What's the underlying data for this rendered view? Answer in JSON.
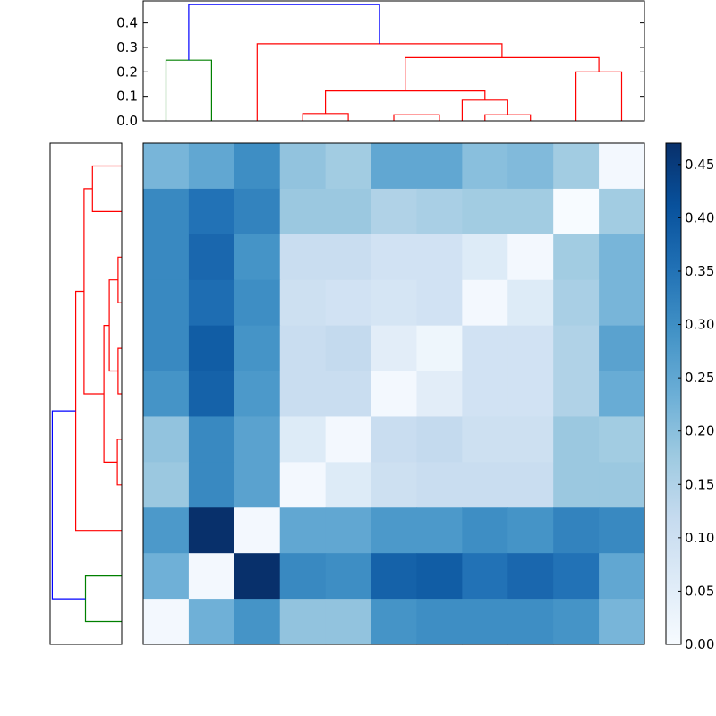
{
  "chart_data": {
    "type": "heatmap",
    "title": "",
    "matrix": [
      [
        0.22,
        0.25,
        0.3,
        0.19,
        0.17,
        0.25,
        0.25,
        0.2,
        0.21,
        0.17,
        0.01
      ],
      [
        0.31,
        0.35,
        0.32,
        0.18,
        0.18,
        0.15,
        0.16,
        0.17,
        0.17,
        0.0,
        0.17
      ],
      [
        0.31,
        0.37,
        0.29,
        0.11,
        0.11,
        0.09,
        0.09,
        0.06,
        0.01,
        0.17,
        0.22
      ],
      [
        0.31,
        0.36,
        0.3,
        0.1,
        0.09,
        0.08,
        0.09,
        0.01,
        0.06,
        0.16,
        0.22
      ],
      [
        0.31,
        0.39,
        0.29,
        0.11,
        0.12,
        0.05,
        0.02,
        0.09,
        0.09,
        0.15,
        0.26
      ],
      [
        0.29,
        0.38,
        0.28,
        0.11,
        0.11,
        0.01,
        0.05,
        0.09,
        0.09,
        0.15,
        0.24
      ],
      [
        0.19,
        0.31,
        0.26,
        0.06,
        0.01,
        0.11,
        0.12,
        0.1,
        0.1,
        0.18,
        0.17
      ],
      [
        0.18,
        0.31,
        0.26,
        0.01,
        0.06,
        0.1,
        0.11,
        0.11,
        0.11,
        0.18,
        0.18
      ],
      [
        0.28,
        0.47,
        0.01,
        0.25,
        0.25,
        0.28,
        0.28,
        0.3,
        0.29,
        0.32,
        0.31
      ],
      [
        0.23,
        0.01,
        0.47,
        0.31,
        0.3,
        0.38,
        0.39,
        0.35,
        0.37,
        0.35,
        0.25
      ],
      [
        0.01,
        0.23,
        0.29,
        0.19,
        0.19,
        0.29,
        0.3,
        0.3,
        0.3,
        0.29,
        0.22
      ]
    ],
    "colorbar": {
      "colormap": "Blues",
      "range": [
        0,
        0.47
      ],
      "ticks": [
        0.0,
        0.05,
        0.1,
        0.15,
        0.2,
        0.25,
        0.3,
        0.35,
        0.4,
        0.45
      ],
      "tick_labels": [
        "0.00",
        "0.05",
        "0.10",
        "0.15",
        "0.20",
        "0.25",
        "0.30",
        "0.35",
        "0.40",
        "0.45"
      ]
    },
    "top_dendrogram": {
      "ylim": [
        0,
        0.49
      ],
      "ticks": [
        0.0,
        0.1,
        0.2,
        0.3,
        0.4
      ],
      "tick_labels": [
        "0.0",
        "0.1",
        "0.2",
        "0.3",
        "0.4"
      ],
      "leaf_count": 11,
      "merges": [
        {
          "left": 0,
          "right": 1,
          "height": 0.248,
          "color": "#008000"
        },
        {
          "left": 3,
          "right": 4,
          "height": 0.03,
          "color": "#ff0000"
        },
        {
          "left": 5,
          "right": 6,
          "height": 0.025,
          "color": "#ff0000"
        },
        {
          "left": 7,
          "right": 8,
          "height": 0.025,
          "color": "#ff0000"
        },
        {
          "left": 9,
          "right": 10,
          "height": 0.2,
          "color": "#ff0000"
        },
        {
          "left": 6.5,
          "right": 7.5,
          "height": 0.085,
          "color": "#ff0000"
        },
        {
          "left": 3.5,
          "right": 7.0,
          "height": 0.122,
          "color": "#ff0000"
        },
        {
          "left": 5.25,
          "right": 9.5,
          "height": 0.258,
          "color": "#ff0000"
        },
        {
          "left": 2,
          "right": 7.375,
          "height": 0.315,
          "color": "#ff0000"
        },
        {
          "left": 0.5,
          "right": 4.6875,
          "height": 0.475,
          "color": "#0000ff"
        }
      ]
    },
    "left_dendrogram": {
      "leaf_count": 11,
      "merges": [
        {
          "top": 0,
          "bottom": 1,
          "height": 0.2,
          "color": "#ff0000"
        },
        {
          "top": 2,
          "bottom": 3,
          "height": 0.025,
          "color": "#ff0000"
        },
        {
          "top": 4,
          "bottom": 5,
          "height": 0.025,
          "color": "#ff0000"
        },
        {
          "top": 6,
          "bottom": 7,
          "height": 0.03,
          "color": "#ff0000"
        },
        {
          "top": 9,
          "bottom": 10,
          "height": 0.248,
          "color": "#008000"
        },
        {
          "top": 2.5,
          "bottom": 4.5,
          "height": 0.085,
          "color": "#ff0000"
        },
        {
          "top": 3.5,
          "bottom": 6.5,
          "height": 0.122,
          "color": "#ff0000"
        },
        {
          "top": 0.5,
          "bottom": 5.0,
          "height": 0.258,
          "color": "#ff0000"
        },
        {
          "top": 2.75,
          "bottom": 8,
          "height": 0.315,
          "color": "#ff0000"
        },
        {
          "top": 5.375,
          "bottom": 9.5,
          "height": 0.475,
          "color": "#0000ff"
        }
      ]
    }
  }
}
